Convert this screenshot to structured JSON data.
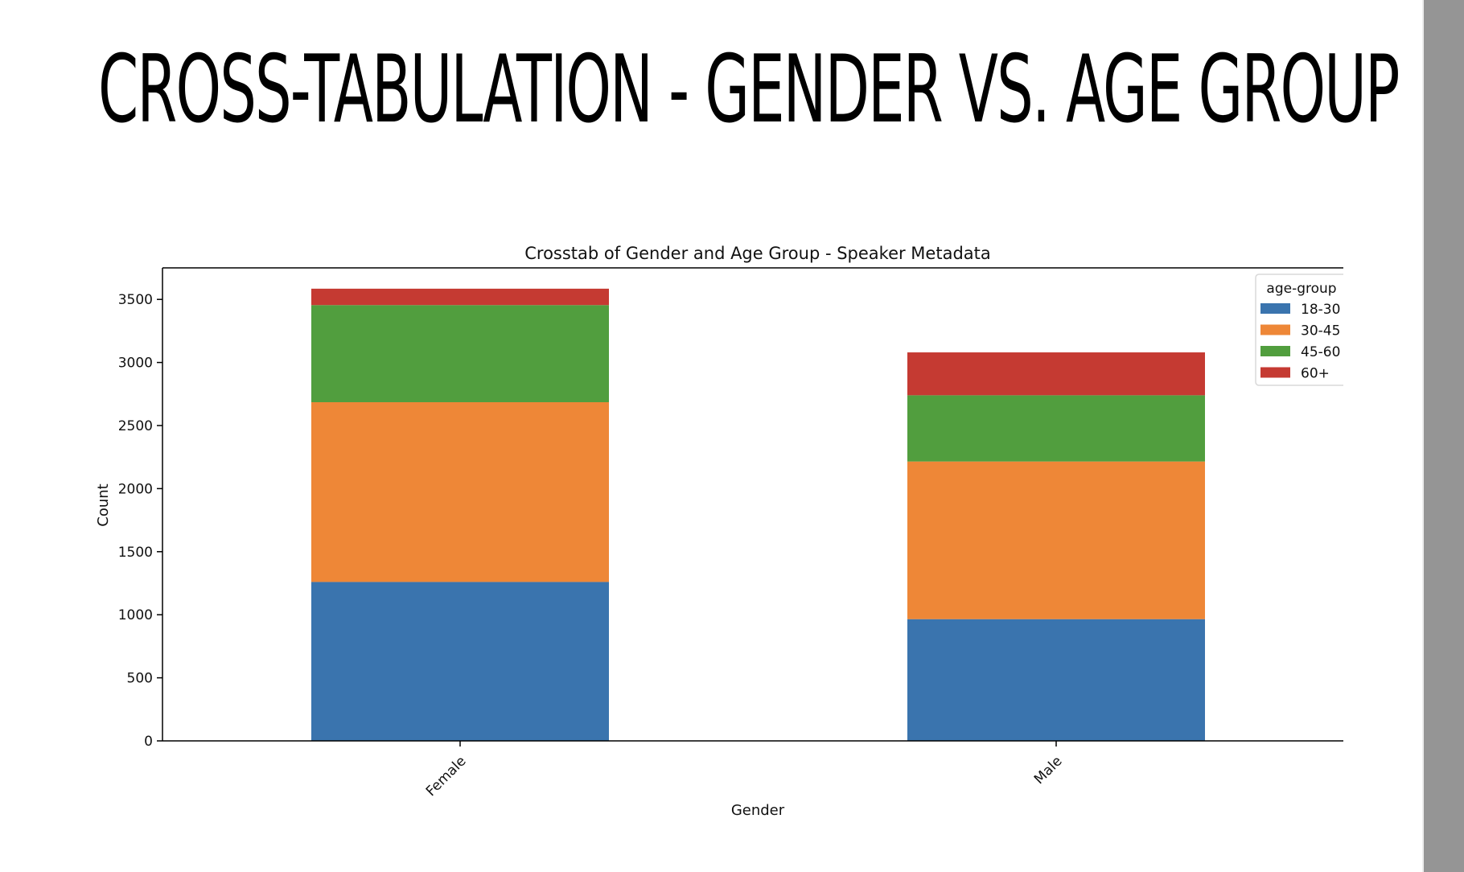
{
  "slide": {
    "title": "CROSS-TABULATION - GENDER VS. AGE GROUP"
  },
  "chart_data": {
    "type": "bar",
    "stacked": true,
    "title": "Crosstab of Gender and Age Group - Speaker Metadata",
    "xlabel": "Gender",
    "ylabel": "Count",
    "categories": [
      "Female",
      "Male"
    ],
    "ylim": [
      0,
      3750
    ],
    "yticks": [
      0,
      500,
      1000,
      1500,
      2000,
      2500,
      3000,
      3500
    ],
    "grid": false,
    "legend": {
      "title": "age-group",
      "placement": "top-right"
    },
    "series": [
      {
        "name": "18-30",
        "color": "#3a74ae",
        "values": [
          1260,
          965
        ]
      },
      {
        "name": "30-45",
        "color": "#ee8737",
        "values": [
          1425,
          1250
        ]
      },
      {
        "name": "45-60",
        "color": "#519e3e",
        "values": [
          770,
          525
        ]
      },
      {
        "name": "60+",
        "color": "#c53a32",
        "values": [
          130,
          340
        ]
      }
    ]
  }
}
